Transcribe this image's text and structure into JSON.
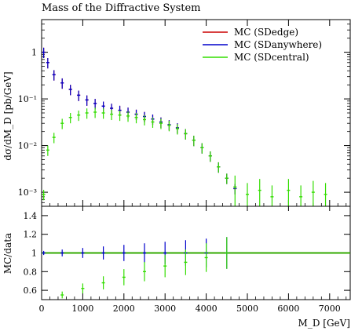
{
  "chart_data": [
    {
      "type": "scatter",
      "title": "Mass of the Diffractive System",
      "xlabel": "M_D [GeV]",
      "ylabel": "dσ/dM_D [pb/GeV]",
      "yscale": "log",
      "xlim": [
        0,
        7500
      ],
      "ylim": [
        0.0005,
        5
      ],
      "y_ticks": [
        0.001,
        0.01,
        0.1,
        1
      ],
      "y_tick_labels": [
        "10⁻³",
        "10⁻²",
        "10⁻¹",
        "1"
      ],
      "legend_position": "top-right",
      "series": [
        {
          "name": "MC (SDedge)",
          "color": "#cc0000",
          "x": [
            50,
            150,
            300,
            500,
            700,
            900,
            1100,
            1300,
            1500,
            1700,
            1900,
            2100,
            2300,
            2500,
            2700,
            2900,
            3100,
            3300,
            3500,
            3700,
            3900,
            4100,
            4300,
            4500,
            4700
          ],
          "y": [
            1.0,
            0.6,
            0.33,
            0.22,
            0.16,
            0.12,
            0.095,
            0.08,
            0.07,
            0.063,
            0.057,
            0.052,
            0.047,
            0.042,
            0.037,
            0.032,
            0.028,
            0.024,
            0.018,
            0.013,
            0.009,
            0.006,
            0.0035,
            0.002,
            0.0012
          ]
        },
        {
          "name": "MC (SDanywhere)",
          "color": "#0000cc",
          "x": [
            50,
            150,
            300,
            500,
            700,
            900,
            1100,
            1300,
            1500,
            1700,
            1900,
            2100,
            2300,
            2500,
            2700,
            2900,
            3100,
            3300,
            3500,
            3700,
            3900,
            4100,
            4300,
            4500,
            4700
          ],
          "y": [
            1.0,
            0.6,
            0.33,
            0.22,
            0.16,
            0.12,
            0.095,
            0.08,
            0.07,
            0.063,
            0.057,
            0.052,
            0.047,
            0.042,
            0.037,
            0.032,
            0.028,
            0.024,
            0.018,
            0.013,
            0.009,
            0.006,
            0.0035,
            0.002,
            0.0012
          ]
        },
        {
          "name": "MC (SDcentral)",
          "color": "#33dd00",
          "x": [
            50,
            150,
            300,
            500,
            700,
            900,
            1100,
            1300,
            1500,
            1700,
            1900,
            2100,
            2300,
            2500,
            2700,
            2900,
            3100,
            3300,
            3500,
            3700,
            3900,
            4100,
            4300,
            4500,
            4700,
            5000,
            5300,
            5600,
            6000,
            6300,
            6600,
            6900
          ],
          "y": [
            0.0009,
            0.008,
            0.015,
            0.03,
            0.04,
            0.045,
            0.05,
            0.052,
            0.05,
            0.047,
            0.045,
            0.043,
            0.04,
            0.036,
            0.032,
            0.03,
            0.027,
            0.023,
            0.018,
            0.013,
            0.009,
            0.006,
            0.0035,
            0.002,
            0.0013,
            0.0009,
            0.0011,
            0.0008,
            0.0011,
            0.0008,
            0.001,
            0.0009
          ]
        }
      ]
    },
    {
      "type": "scatter",
      "xlabel": "M_D [GeV]",
      "ylabel": "MC/data",
      "xlim": [
        0,
        7500
      ],
      "ylim": [
        0.5,
        1.5
      ],
      "x_ticks": [
        0,
        1000,
        2000,
        3000,
        4000,
        5000,
        6000,
        7000
      ],
      "x_tick_labels": [
        "0",
        "1000",
        "2000",
        "3000",
        "4000",
        "5000",
        "6000",
        "7000"
      ],
      "y_ticks": [
        0.6,
        0.8,
        1,
        1.2,
        1.4
      ],
      "y_tick_labels": [
        "0.6",
        "0.8",
        "1",
        "1.2",
        "1.4"
      ],
      "reference_line": 1.0,
      "series": [
        {
          "name": "MC (SDanywhere)",
          "color": "#0000cc",
          "x": [
            50,
            500,
            1000,
            1500,
            2000,
            2500,
            3000,
            3500,
            4000,
            4500
          ],
          "y": [
            1.0,
            1.0,
            1.0,
            1.0,
            1.0,
            1.0,
            1.0,
            1.0,
            1.0,
            1.0
          ]
        },
        {
          "name": "MC (SDcentral)",
          "color": "#33dd00",
          "x": [
            500,
            1000,
            1500,
            2000,
            2500,
            3000,
            3500,
            4000,
            4500
          ],
          "y": [
            0.55,
            0.62,
            0.68,
            0.74,
            0.8,
            0.86,
            0.9,
            0.95,
            1.0
          ]
        }
      ]
    }
  ],
  "legend": {
    "items": [
      {
        "label": "MC (SDedge)",
        "color": "#cc0000"
      },
      {
        "label": "MC (SDanywhere)",
        "color": "#0000cc"
      },
      {
        "label": "MC (SDcentral)",
        "color": "#33dd00"
      }
    ]
  },
  "labels": {
    "title": "Mass of the Diffractive System",
    "ylabel_main": "dσ/dM_D [pb/GeV]",
    "ylabel_ratio": "MC/data",
    "xlabel": "M_D [GeV]"
  }
}
